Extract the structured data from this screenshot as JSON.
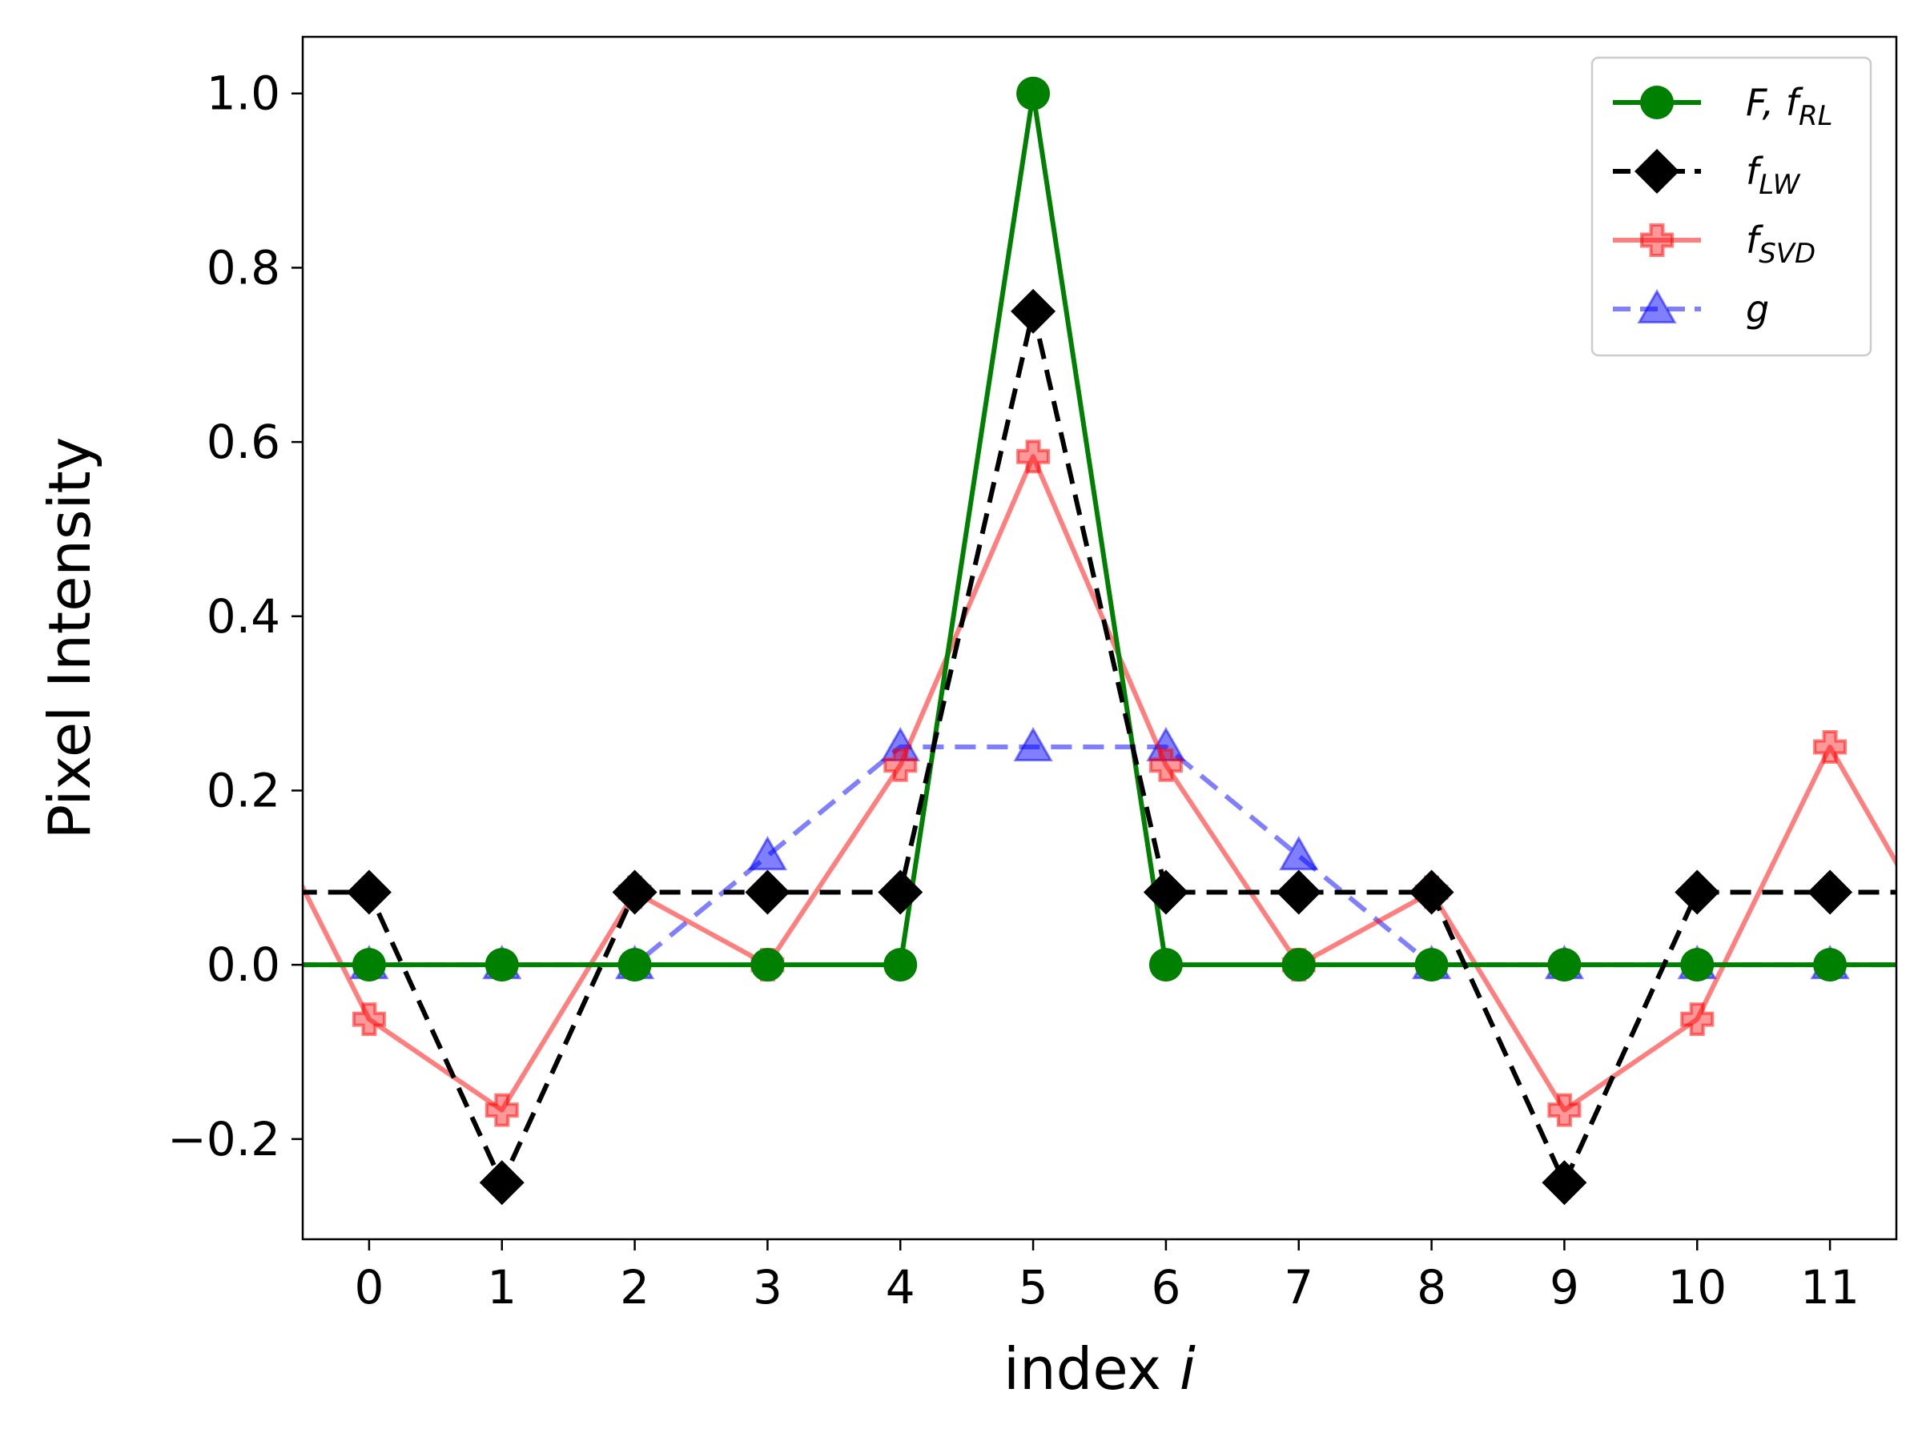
{
  "chart_data": {
    "type": "line",
    "xlabel_text": "index ",
    "xlabel_var": "i",
    "ylabel": "Pixel Intensity",
    "xlim": [
      -0.5,
      11.5
    ],
    "ylim": [
      -0.315,
      1.065
    ],
    "x_ticks": [
      0,
      1,
      2,
      3,
      4,
      5,
      6,
      7,
      8,
      9,
      10,
      11
    ],
    "y_ticks": [
      -0.2,
      0.0,
      0.2,
      0.4,
      0.6,
      0.8,
      1.0
    ],
    "y_tick_labels": [
      "−0.2",
      "0.0",
      "0.2",
      "0.4",
      "0.6",
      "0.8",
      "1.0"
    ],
    "grid": false,
    "legend_position": "top-right",
    "x": [
      0,
      1,
      2,
      3,
      4,
      5,
      6,
      7,
      8,
      9,
      10,
      11
    ],
    "series": [
      {
        "id": "g",
        "legend_main": "g",
        "legend_sub": "",
        "color": "#0000ff",
        "opacity": 0.5,
        "dash": "dashed",
        "marker": "triangle",
        "values": [
          0,
          0,
          0,
          0.125,
          0.25,
          0.25,
          0.25,
          0.125,
          0,
          0,
          0,
          0
        ],
        "extend_left": 0,
        "extend_right": 0
      },
      {
        "id": "f_svd",
        "legend_main": "f",
        "legend_sub": "SVD",
        "color": "#ff0000",
        "opacity": 0.5,
        "dash": "solid",
        "marker": "plus",
        "values": [
          -0.0625,
          -0.1667,
          0.0833,
          0,
          0.2292,
          0.5833,
          0.2292,
          0,
          0.0833,
          -0.1667,
          -0.0625,
          0.25
        ],
        "extend_left": 0.104,
        "extend_right": 0.104
      },
      {
        "id": "F_fRL",
        "legend_main": "F, f",
        "legend_sub": "RL",
        "color": "#008000",
        "opacity": 1,
        "dash": "solid",
        "marker": "circle",
        "values": [
          0,
          0,
          0,
          0,
          0,
          1,
          0,
          0,
          0,
          0,
          0,
          0
        ],
        "extend_left": 0,
        "extend_right": 0
      },
      {
        "id": "f_lw",
        "legend_main": "f",
        "legend_sub": "LW",
        "color": "#000000",
        "opacity": 1,
        "dash": "dashed",
        "marker": "diamond",
        "values": [
          0.0833,
          -0.25,
          0.0833,
          0.0833,
          0.0833,
          0.75,
          0.0833,
          0.0833,
          0.0833,
          -0.25,
          0.0833,
          0.0833
        ],
        "extend_left": 0.0833,
        "extend_right": 0.0833
      }
    ],
    "legend_order": [
      "F_fRL",
      "f_lw",
      "f_svd",
      "g"
    ]
  }
}
